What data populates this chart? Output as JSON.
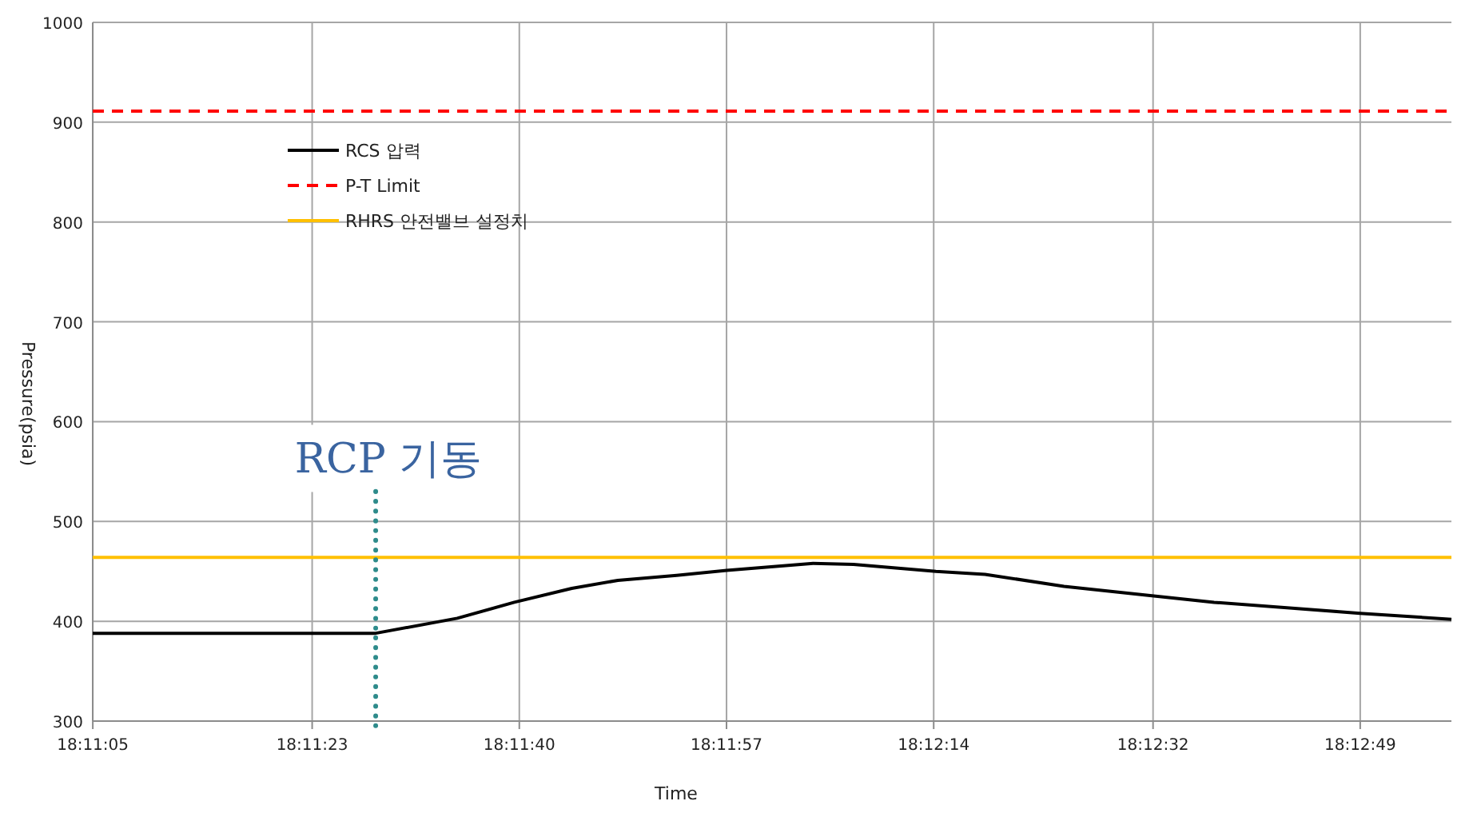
{
  "chart_data": {
    "type": "line",
    "xlabel": "Time",
    "ylabel": "Pressure(psia)",
    "xlim": [
      18.18472,
      18.21569
    ],
    "ylim": [
      300,
      1000
    ],
    "xticks": [
      {
        "value": 18.184722,
        "label": "18:11:05"
      },
      {
        "value": 18.189722,
        "label": "18:11:23"
      },
      {
        "value": 18.194444,
        "label": "18:11:40"
      },
      {
        "value": 18.199167,
        "label": "18:11:57"
      },
      {
        "value": 18.203889,
        "label": "18:12:14"
      },
      {
        "value": 18.208889,
        "label": "18:12:32"
      },
      {
        "value": 18.213611,
        "label": "18:12:49"
      }
    ],
    "yticks": [
      300,
      400,
      500,
      600,
      700,
      800,
      900,
      1000
    ],
    "grid": true,
    "legend": "top left",
    "series": [
      {
        "name": "RCS 압력",
        "color": "#000000",
        "line_style": "solid",
        "x": [
          18.18472,
          18.19117,
          18.19303,
          18.19433,
          18.19564,
          18.19669,
          18.19803,
          18.19917,
          18.20114,
          18.20206,
          18.20394,
          18.20506,
          18.20686,
          18.20878,
          18.21028,
          18.21361,
          18.21569
        ],
        "values": [
          388,
          388,
          403,
          419,
          433,
          441,
          446,
          451,
          458,
          457,
          450,
          447,
          435,
          426,
          419,
          408,
          402
        ]
      },
      {
        "name": "P-T Limit",
        "color": "#ff0000",
        "line_style": "dashed",
        "x": [
          18.18472,
          18.21569
        ],
        "values": [
          911,
          911
        ]
      },
      {
        "name": "RHRS 안전밸브 설정치",
        "color": "#ffc000",
        "line_style": "solid",
        "x": [
          18.18472,
          18.21569
        ],
        "values": [
          464,
          464
        ]
      }
    ],
    "ref_lines": [
      {
        "axis": "x",
        "value": 18.19117,
        "label": "RCP 기동",
        "color": "#2e8b8b",
        "line_style": "dotted"
      }
    ]
  }
}
